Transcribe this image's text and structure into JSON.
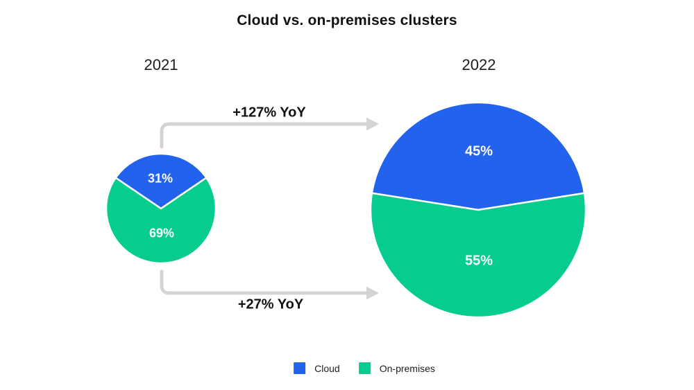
{
  "title": "Cloud vs. on-premises clusters",
  "annotations": {
    "top_arrow": "+127% YoY",
    "bottom_arrow": "+27% YoY"
  },
  "colors": {
    "cloud": "#2262EC",
    "on_premises": "#06CD8F",
    "arrow": "#D4D4D4",
    "text": "#111111",
    "slice_label": "#FFFFFF"
  },
  "legend": [
    {
      "label": "Cloud",
      "color": "#2262EC"
    },
    {
      "label": "On-premises",
      "color": "#06CD8F"
    }
  ],
  "chart_data": [
    {
      "type": "pie",
      "year": "2021",
      "layout": "first slice centered at top, clockwise",
      "slices": [
        {
          "name": "Cloud",
          "value": 31,
          "label": "31%",
          "color": "#2262EC"
        },
        {
          "name": "On-premises",
          "value": 69,
          "label": "69%",
          "color": "#06CD8F"
        }
      ]
    },
    {
      "type": "pie",
      "year": "2022",
      "layout": "first slice centered at top, clockwise",
      "slices": [
        {
          "name": "Cloud",
          "value": 45,
          "label": "45%",
          "color": "#2262EC"
        },
        {
          "name": "On-premises",
          "value": 55,
          "label": "55%",
          "color": "#06CD8F"
        }
      ]
    }
  ]
}
